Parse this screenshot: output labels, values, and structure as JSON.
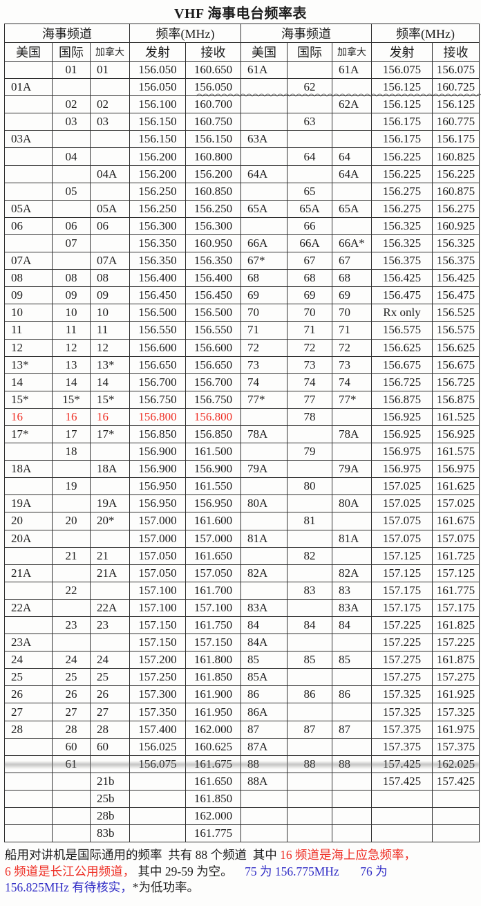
{
  "page_title": "VHF 海事电台频率表",
  "colors": {
    "text": "#1c1c1c",
    "red": "#ee2e24",
    "blue": "#2f2bc5",
    "border": "#2f2f2f"
  },
  "table": {
    "group_headers": [
      {
        "label": "海事频道"
      },
      {
        "label": "频率(MHz)"
      },
      {
        "label": "海事频道"
      },
      {
        "label": "频率(MHz)"
      }
    ],
    "sub_headers": [
      "美国",
      "国际",
      "加拿大",
      "发射",
      "接收",
      "美国",
      "国际",
      "加拿大",
      "发射",
      "接收"
    ],
    "red_row_index": 20,
    "rows": [
      [
        "",
        "01",
        "01",
        "156.050",
        "160.650",
        "61A",
        "",
        "61A",
        "156.075",
        "156.075"
      ],
      [
        "01A",
        "",
        "",
        "156.050",
        "156.050",
        "",
        "62",
        "",
        "156.125",
        "160.725"
      ],
      [
        "",
        "02",
        "02",
        "156.100",
        "160.700",
        "",
        "",
        "62A",
        "156.125",
        "156.125"
      ],
      [
        "",
        "03",
        "03",
        "156.150",
        "160.750",
        "",
        "63",
        "",
        "156.175",
        "160.775"
      ],
      [
        "03A",
        "",
        "",
        "156.150",
        "156.150",
        "63A",
        "",
        "",
        "156.175",
        "156.175"
      ],
      [
        "",
        "04",
        "",
        "156.200",
        "160.800",
        "",
        "64",
        "64",
        "156.225",
        "160.825"
      ],
      [
        "",
        "",
        "04A",
        "156.200",
        "156.200",
        "64A",
        "",
        "64A",
        "156.225",
        "156.225"
      ],
      [
        "",
        "05",
        "",
        "156.250",
        "160.850",
        "",
        "65",
        "",
        "156.275",
        "160.875"
      ],
      [
        "05A",
        "",
        "05A",
        "156.250",
        "156.250",
        "65A",
        "65A",
        "65A",
        "156.275",
        "156.275"
      ],
      [
        "06",
        "06",
        "06",
        "156.300",
        "156.300",
        "",
        "66",
        "",
        "156.325",
        "160.925"
      ],
      [
        "",
        "07",
        "",
        "156.350",
        "160.950",
        "66A",
        "66A",
        "66A*",
        "156.325",
        "156.325"
      ],
      [
        "07A",
        "",
        "07A",
        "156.350",
        "156.350",
        "67*",
        "67",
        "67",
        "156.375",
        "156.375"
      ],
      [
        "08",
        "08",
        "08",
        "156.400",
        "156.400",
        "68",
        "68",
        "68",
        "156.425",
        "156.425"
      ],
      [
        "09",
        "09",
        "09",
        "156.450",
        "156.450",
        "69",
        "69",
        "69",
        "156.475",
        "156.475"
      ],
      [
        "10",
        "10",
        "10",
        "156.500",
        "156.500",
        "70",
        "70",
        "70",
        "Rx only",
        "156.525"
      ],
      [
        "11",
        "11",
        "11",
        "156.550",
        "156.550",
        "71",
        "71",
        "71",
        "156.575",
        "156.575"
      ],
      [
        "12",
        "12",
        "12",
        "156.600",
        "156.600",
        "72",
        "72",
        "72",
        "156.625",
        "156.625"
      ],
      [
        "13*",
        "13",
        "13*",
        "156.650",
        "156.650",
        "73",
        "73",
        "73",
        "156.675",
        "156.675"
      ],
      [
        "14",
        "14",
        "14",
        "156.700",
        "156.700",
        "74",
        "74",
        "74",
        "156.725",
        "156.725"
      ],
      [
        "15*",
        "15*",
        "15*",
        "156.750",
        "156.750",
        "77*",
        "77",
        "77*",
        "156.875",
        "156.875"
      ],
      [
        "16",
        "16",
        "16",
        "156.800",
        "156.800",
        "",
        "78",
        "",
        "156.925",
        "161.525"
      ],
      [
        "17*",
        "17",
        "17*",
        "156.850",
        "156.850",
        "78A",
        "",
        "78A",
        "156.925",
        "156.925"
      ],
      [
        "",
        "18",
        "",
        "156.900",
        "161.500",
        "",
        "79",
        "",
        "156.975",
        "161.575"
      ],
      [
        "18A",
        "",
        "18A",
        "156.900",
        "156.900",
        "79A",
        "",
        "79A",
        "156.975",
        "156.975"
      ],
      [
        "",
        "19",
        "",
        "156.950",
        "161.550",
        "",
        "80",
        "",
        "157.025",
        "161.625"
      ],
      [
        "19A",
        "",
        "19A",
        "156.950",
        "156.950",
        "80A",
        "",
        "80A",
        "157.025",
        "157.025"
      ],
      [
        "20",
        "20",
        "20*",
        "157.000",
        "161.600",
        "",
        "81",
        "",
        "157.075",
        "161.675"
      ],
      [
        "20A",
        "",
        "",
        "157.000",
        "157.000",
        "81A",
        "",
        "81A",
        "157.075",
        "157.075"
      ],
      [
        "",
        "21",
        "21",
        "157.050",
        "161.650",
        "",
        "82",
        "",
        "157.125",
        "161.725"
      ],
      [
        "21A",
        "",
        "21A",
        "157.050",
        "157.050",
        "82A",
        "",
        "82A",
        "157.125",
        "157.125"
      ],
      [
        "",
        "22",
        "",
        "157.100",
        "161.700",
        "",
        "83",
        "83",
        "157.175",
        "161.775"
      ],
      [
        "22A",
        "",
        "22A",
        "157.100",
        "157.100",
        "83A",
        "",
        "83A",
        "157.175",
        "157.175"
      ],
      [
        "",
        "23",
        "23",
        "157.150",
        "161.750",
        "84",
        "84",
        "84",
        "157.225",
        "161.825"
      ],
      [
        "23A",
        "",
        "",
        "157.150",
        "157.150",
        "84A",
        "",
        "",
        "157.225",
        "157.225"
      ],
      [
        "24",
        "24",
        "24",
        "157.200",
        "161.800",
        "85",
        "85",
        "85",
        "157.275",
        "161.875"
      ],
      [
        "25",
        "25",
        "25",
        "157.250",
        "161.850",
        "85A",
        "",
        "",
        "157.275",
        "157.275"
      ],
      [
        "26",
        "26",
        "26",
        "157.300",
        "161.900",
        "86",
        "86",
        "86",
        "157.325",
        "161.925"
      ],
      [
        "27",
        "27",
        "27",
        "157.350",
        "161.950",
        "86A",
        "",
        "",
        "157.325",
        "157.325"
      ],
      [
        "28",
        "28",
        "28",
        "157.400",
        "162.000",
        "87",
        "87",
        "87",
        "157.375",
        "161.975"
      ],
      [
        "",
        "60",
        "60",
        "156.025",
        "160.625",
        "87A",
        "",
        "",
        "157.375",
        "157.375"
      ],
      [
        "",
        "61",
        "",
        "156.075",
        "161.675",
        "88",
        "88",
        "88",
        "157.425",
        "162.025"
      ],
      [
        "",
        "",
        "21b",
        "",
        "161.650",
        "88A",
        "",
        "",
        "157.425",
        "157.425"
      ],
      [
        "",
        "",
        "25b",
        "",
        "161.850",
        "",
        "",
        "",
        "",
        ""
      ],
      [
        "",
        "",
        "28b",
        "",
        "162.000",
        "",
        "",
        "",
        "",
        ""
      ],
      [
        "",
        "",
        "83b",
        "",
        "161.775",
        "",
        "",
        "",
        "",
        ""
      ]
    ]
  },
  "annotations": {
    "wavy_strike": "hand-drawn wavy line across channel 62 row",
    "scan_band": "gray scan artifact band above channel 61/88 row"
  },
  "footer": {
    "lines": [
      [
        {
          "t": "船用对讲机是国际通用的频率  共有 88 个频道  其中 ",
          "c": "text"
        },
        {
          "t": "16 频道是海上应急频率，",
          "c": "red"
        }
      ],
      [
        {
          "t": "6 频道是长江公用频道，",
          "c": "red"
        },
        {
          "t": " 其中 29-59 为空。",
          "c": "text"
        },
        {
          "t": "    75 为 156.775MHz",
          "c": "blue"
        },
        {
          "t": "       76 为",
          "c": "blue"
        }
      ],
      [
        {
          "t": "156.825MHz 有待核实，",
          "c": "blue"
        },
        {
          "t": "*为低功率。",
          "c": "text"
        }
      ]
    ]
  }
}
